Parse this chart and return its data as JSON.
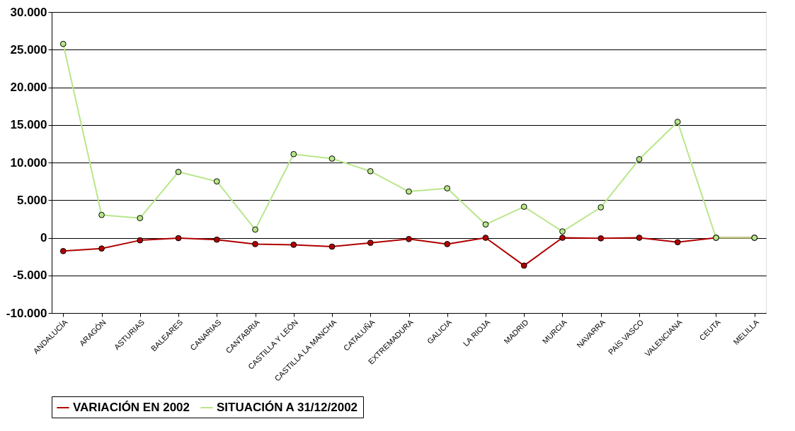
{
  "chart_data": {
    "type": "line",
    "categories": [
      "ANDALUCÍA",
      "ARAGÓN",
      "ASTURIAS",
      "BALEARES",
      "CANARIAS",
      "CANTABRIA",
      "CASTILLA Y LEÓN",
      "CASTILLA LA MANCHA",
      "CATALUÑA",
      "EXTREMADURA",
      "GALICIA",
      "LA RIOJA",
      "MADRID",
      "MURCIA",
      "NAVARRA",
      "PAÍS VASCO",
      "VALENCIANA",
      "CEUTA",
      "MELILLA"
    ],
    "series": [
      {
        "name": "VARIACIÓN EN 2002",
        "color": "#b00000",
        "values": [
          -1770,
          -1430,
          -340,
          -50,
          -250,
          -840,
          -930,
          -1180,
          -670,
          -170,
          -840,
          0,
          -3700,
          0,
          -80,
          0,
          -590,
          0,
          0
        ]
      },
      {
        "name": "SITUACIÓN A 31/12/2002",
        "color": "#b8e68a",
        "values": [
          25760,
          3030,
          2610,
          8750,
          7490,
          1090,
          11110,
          10520,
          8840,
          6140,
          6570,
          1770,
          4120,
          840,
          4040,
          10440,
          15400,
          0,
          0
        ]
      }
    ],
    "ylim": [
      -10000,
      30000
    ],
    "yticks": [
      {
        "value": -10000,
        "label": "-10.000"
      },
      {
        "value": -5000,
        "label": "-5.000"
      },
      {
        "value": 0,
        "label": "0"
      },
      {
        "value": 5000,
        "label": "5.000"
      },
      {
        "value": 10000,
        "label": "10.000"
      },
      {
        "value": 15000,
        "label": "15.000"
      },
      {
        "value": 20000,
        "label": "20.000"
      },
      {
        "value": 25000,
        "label": "25.000"
      },
      {
        "value": 30000,
        "label": "30.000"
      }
    ],
    "grid": "y",
    "legend": "bottom",
    "marker": "circle",
    "line_style": "solid"
  }
}
